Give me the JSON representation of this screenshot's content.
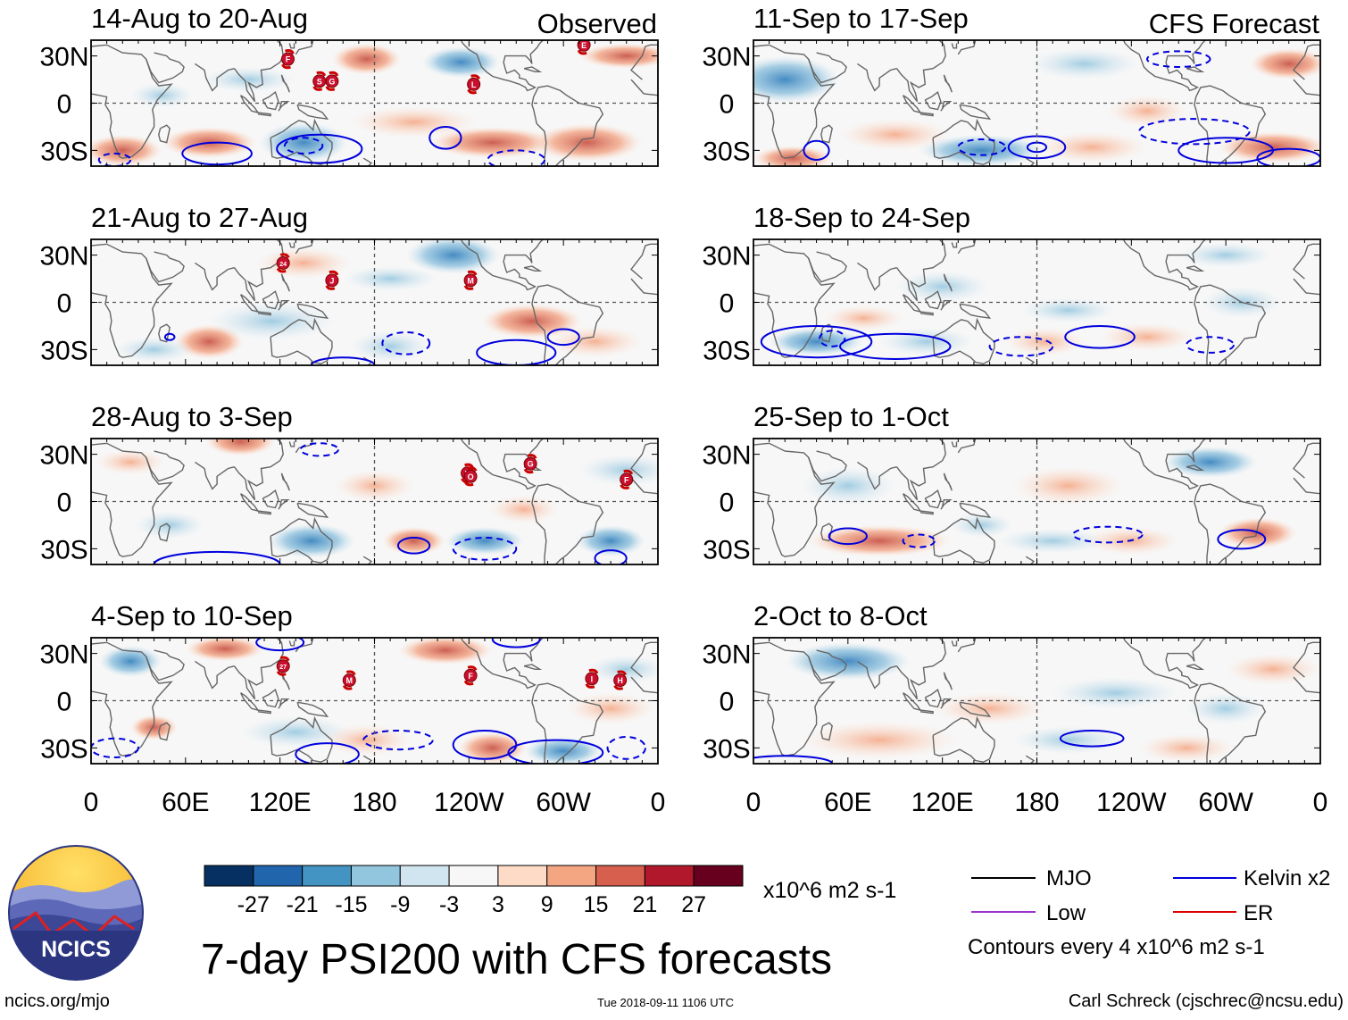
{
  "chart_data": {
    "type": "heatmap",
    "title": "7-day PSI200 with CFS forecasts",
    "variable": "PSI200",
    "units": "x10^6 m2 s-1",
    "column_headers": [
      "Observed",
      "CFS Forecast"
    ],
    "panels": [
      {
        "id": "obs1",
        "label": "14-Aug to 20-Aug",
        "type": "Observed",
        "storm_markers": [
          "F",
          "S",
          "G",
          "L",
          "E"
        ]
      },
      {
        "id": "obs2",
        "label": "21-Aug to 27-Aug",
        "type": "Observed",
        "storm_markers": [
          "24",
          "J",
          "M"
        ]
      },
      {
        "id": "obs3",
        "label": "28-Aug to 3-Sep",
        "type": "Observed",
        "storm_markers": [
          "N",
          "O",
          "G",
          "F"
        ]
      },
      {
        "id": "obs4",
        "label": "4-Sep to 10-Sep",
        "type": "Observed",
        "storm_markers": [
          "27",
          "M",
          "F",
          "I",
          "H"
        ]
      },
      {
        "id": "fc1",
        "label": "11-Sep to 17-Sep",
        "type": "CFS Forecast",
        "storm_markers": []
      },
      {
        "id": "fc2",
        "label": "18-Sep to 24-Sep",
        "type": "CFS Forecast",
        "storm_markers": []
      },
      {
        "id": "fc3",
        "label": "25-Sep to 1-Oct",
        "type": "CFS Forecast",
        "storm_markers": []
      },
      {
        "id": "fc4",
        "label": "2-Oct to 8-Oct",
        "type": "CFS Forecast",
        "storm_markers": []
      }
    ],
    "x_ticks": [
      "0",
      "60E",
      "120E",
      "180",
      "120W",
      "60W",
      "0"
    ],
    "y_ticks": [
      "30N",
      "0",
      "30S"
    ],
    "lon_range": [
      0,
      360
    ],
    "lat_range": [
      -40,
      40
    ],
    "colorbar": {
      "labels": [
        "-27",
        "-21",
        "-15",
        "-9",
        "-3",
        "3",
        "9",
        "15",
        "21",
        "27"
      ],
      "colors": [
        "#053061",
        "#2166ac",
        "#4393c3",
        "#92c5de",
        "#d1e5f0",
        "#f7f7f7",
        "#fddbc7",
        "#f4a582",
        "#d6604d",
        "#b2182b",
        "#67001f"
      ]
    },
    "contour_legend": [
      {
        "name": "MJO",
        "color": "#000000"
      },
      {
        "name": "Kelvin x2",
        "color": "#0000dd"
      },
      {
        "name": "Low",
        "color": "#9933cc"
      },
      {
        "name": "ER",
        "color": "#dd0000"
      }
    ],
    "contour_note": "Contours every 4 x10^6 m2 s-1"
  },
  "footer": {
    "website": "ncics.org/mjo",
    "timestamp": "Tue 2018-09-11 1106 UTC",
    "author": "Carl Schreck (cjschrec@ncsu.edu)"
  },
  "logo": {
    "text": "NCICS"
  },
  "colors": {
    "map_line": "#666666",
    "frame": "#000000"
  }
}
